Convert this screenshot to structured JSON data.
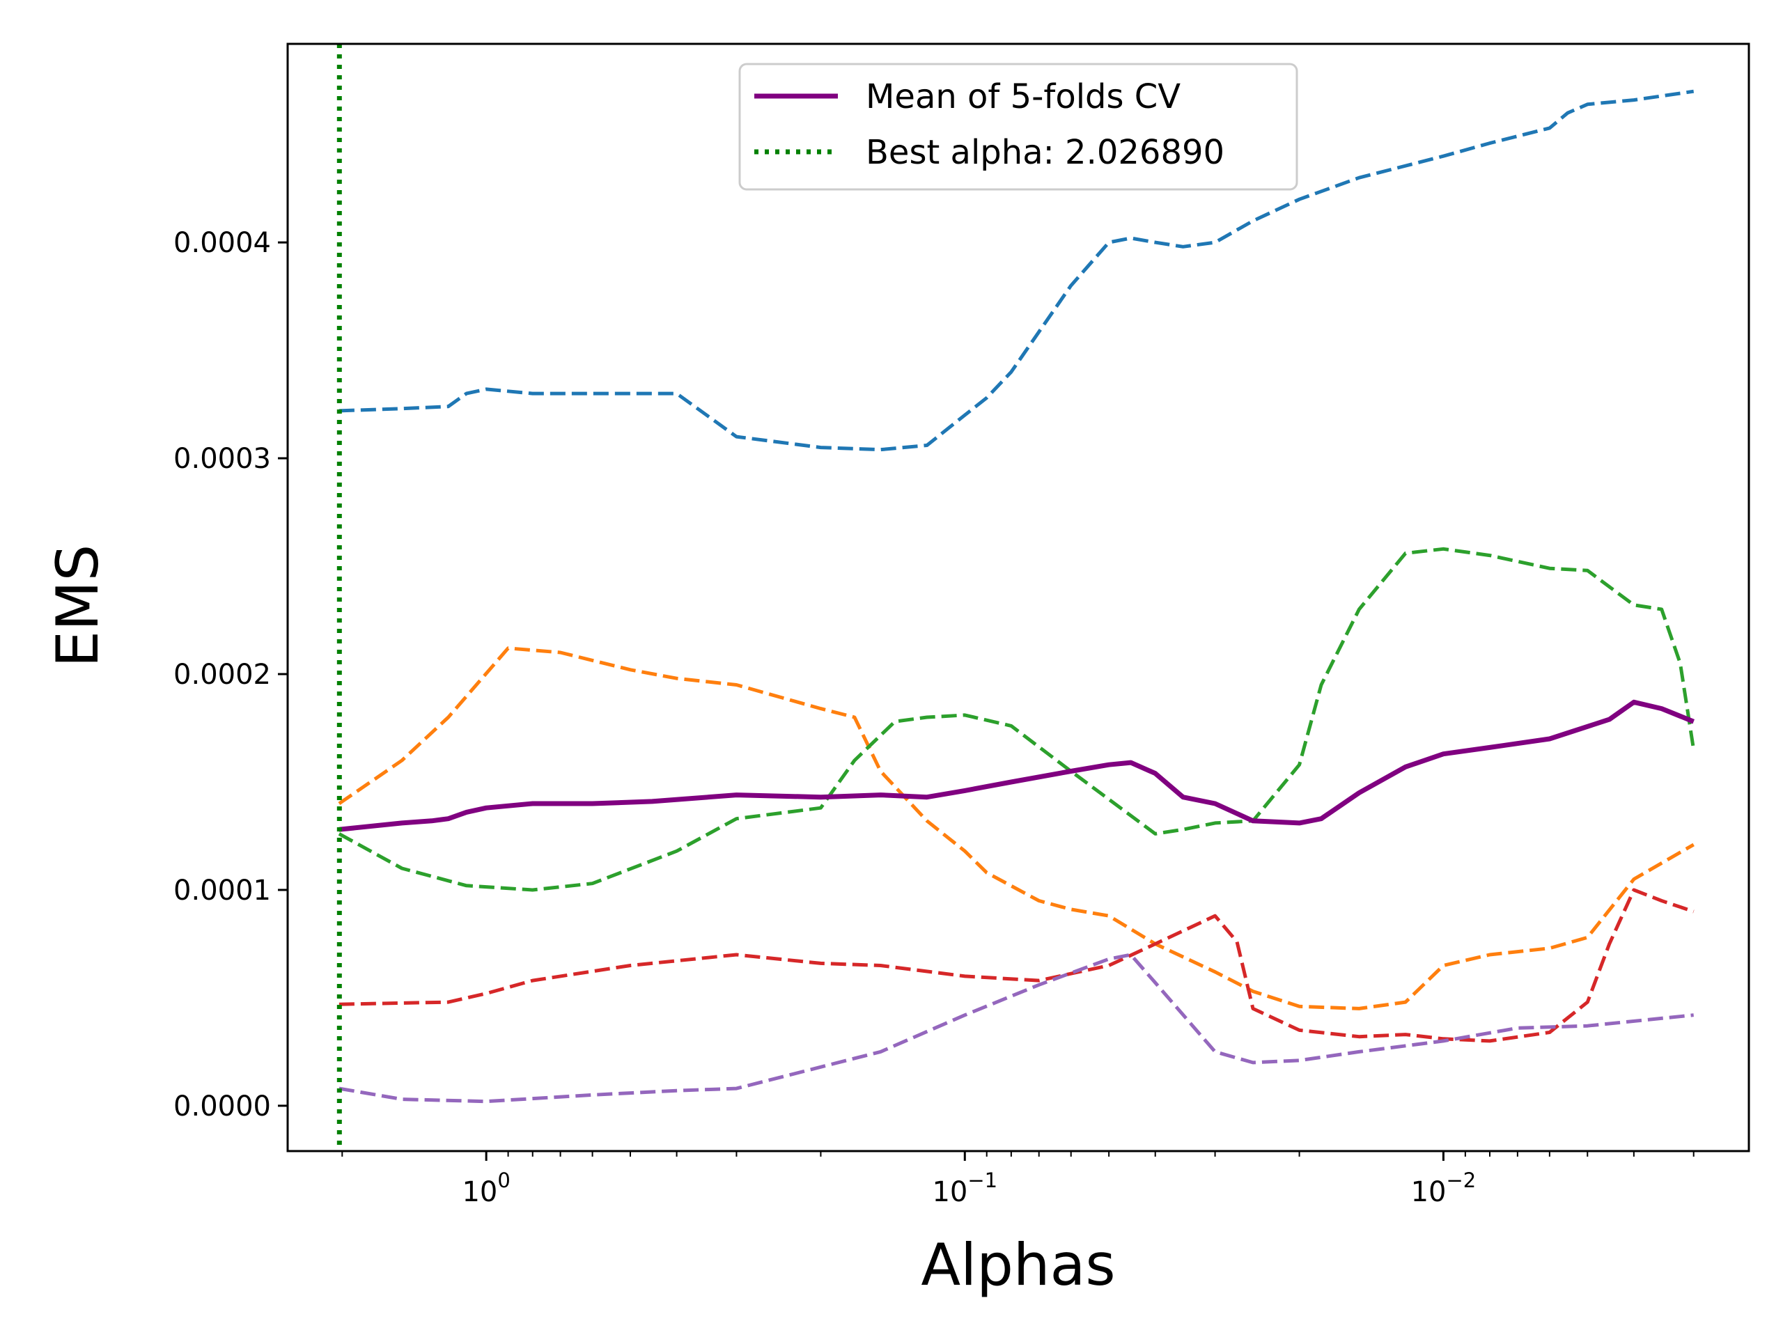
{
  "chart_data": {
    "type": "line",
    "xlabel": "Alphas",
    "ylabel": "EMS",
    "xscale": "log",
    "xaxis_inverted": true,
    "xlim": [
      2.6,
      0.0023
    ],
    "ylim": [
      -2.1e-05,
      0.000492
    ],
    "xticks": [
      {
        "value": 1,
        "label_base": "10",
        "label_exp": "0"
      },
      {
        "value": 0.1,
        "label_base": "10",
        "label_exp": "−1"
      },
      {
        "value": 0.01,
        "label_base": "10",
        "label_exp": "−2"
      }
    ],
    "yticks": [
      {
        "value": 0.0,
        "label": "0.0000"
      },
      {
        "value": 0.0001,
        "label": "0.0001"
      },
      {
        "value": 0.0002,
        "label": "0.0002"
      },
      {
        "value": 0.0003,
        "label": "0.0003"
      },
      {
        "value": 0.0004,
        "label": "0.0004"
      }
    ],
    "grid": false,
    "legend_position": "top-center",
    "best_alpha": 2.02689,
    "series": [
      {
        "id": "fold1",
        "color": "#1f77b4",
        "style": "dashed",
        "x": [
          2.03,
          1.5,
          1.2,
          1.1,
          1.0,
          0.8,
          0.6,
          0.4,
          0.3,
          0.2,
          0.15,
          0.12,
          0.1,
          0.09,
          0.08,
          0.06,
          0.05,
          0.045,
          0.04,
          0.035,
          0.03,
          0.025,
          0.02,
          0.015,
          0.01,
          0.008,
          0.006,
          0.0055,
          0.005,
          0.004,
          0.003
        ],
        "y": [
          0.000322,
          0.000323,
          0.000324,
          0.00033,
          0.000332,
          0.00033,
          0.00033,
          0.00033,
          0.00031,
          0.000305,
          0.000304,
          0.000306,
          0.00032,
          0.000328,
          0.00034,
          0.00038,
          0.0004,
          0.000402,
          0.0004,
          0.000398,
          0.0004,
          0.00041,
          0.00042,
          0.00043,
          0.00044,
          0.000446,
          0.000453,
          0.00046,
          0.000464,
          0.000466,
          0.00047
        ]
      },
      {
        "id": "fold2",
        "color": "#ff7f0e",
        "style": "dashed",
        "x": [
          2.03,
          1.5,
          1.2,
          0.9,
          0.7,
          0.5,
          0.4,
          0.3,
          0.2,
          0.17,
          0.15,
          0.12,
          0.1,
          0.09,
          0.07,
          0.06,
          0.05,
          0.04,
          0.03,
          0.025,
          0.02,
          0.015,
          0.012,
          0.01,
          0.008,
          0.006,
          0.005,
          0.004,
          0.003
        ],
        "y": [
          0.00014,
          0.00016,
          0.00018,
          0.000212,
          0.00021,
          0.000202,
          0.000198,
          0.000195,
          0.000184,
          0.00018,
          0.000155,
          0.000132,
          0.000118,
          0.000108,
          9.5e-05,
          9.1e-05,
          8.8e-05,
          7.5e-05,
          6.2e-05,
          5.3e-05,
          4.6e-05,
          4.5e-05,
          4.8e-05,
          6.5e-05,
          7e-05,
          7.3e-05,
          7.8e-05,
          0.000105,
          0.000121
        ]
      },
      {
        "id": "fold3",
        "color": "#2ca02c",
        "style": "dashed",
        "x": [
          2.03,
          1.5,
          1.1,
          0.8,
          0.6,
          0.4,
          0.3,
          0.2,
          0.17,
          0.14,
          0.12,
          0.1,
          0.08,
          0.06,
          0.05,
          0.04,
          0.035,
          0.03,
          0.025,
          0.02,
          0.018,
          0.015,
          0.012,
          0.01,
          0.008,
          0.006,
          0.005,
          0.004,
          0.0035,
          0.0032,
          0.003
        ],
        "y": [
          0.000126,
          0.00011,
          0.000102,
          0.0001,
          0.000103,
          0.000118,
          0.000133,
          0.000138,
          0.00016,
          0.000178,
          0.00018,
          0.000181,
          0.000176,
          0.000155,
          0.000142,
          0.000126,
          0.000128,
          0.000131,
          0.000132,
          0.000158,
          0.000195,
          0.00023,
          0.000256,
          0.000258,
          0.000255,
          0.000249,
          0.000248,
          0.000232,
          0.00023,
          0.000205,
          0.000165
        ]
      },
      {
        "id": "fold4",
        "color": "#d62728",
        "style": "dashed",
        "x": [
          2.03,
          1.2,
          1.0,
          0.8,
          0.5,
          0.3,
          0.2,
          0.15,
          0.1,
          0.07,
          0.05,
          0.04,
          0.03,
          0.027,
          0.025,
          0.02,
          0.015,
          0.012,
          0.01,
          0.008,
          0.006,
          0.005,
          0.0045,
          0.004,
          0.0035,
          0.003
        ],
        "y": [
          4.7e-05,
          4.8e-05,
          5.2e-05,
          5.8e-05,
          6.5e-05,
          7e-05,
          6.6e-05,
          6.5e-05,
          6e-05,
          5.8e-05,
          6.5e-05,
          7.5e-05,
          8.8e-05,
          7.6e-05,
          4.5e-05,
          3.5e-05,
          3.2e-05,
          3.3e-05,
          3.1e-05,
          3e-05,
          3.4e-05,
          4.8e-05,
          7.5e-05,
          0.0001,
          9.5e-05,
          9e-05
        ]
      },
      {
        "id": "fold5",
        "color": "#9467bd",
        "style": "dashed",
        "x": [
          2.03,
          1.5,
          1.0,
          0.6,
          0.4,
          0.3,
          0.15,
          0.1,
          0.07,
          0.05,
          0.045,
          0.04,
          0.03,
          0.025,
          0.02,
          0.015,
          0.01,
          0.007,
          0.005,
          0.003
        ],
        "y": [
          8e-06,
          3e-06,
          2e-06,
          5e-06,
          7e-06,
          8e-06,
          2.5e-05,
          4.2e-05,
          5.6e-05,
          6.8e-05,
          7e-05,
          5.7e-05,
          2.5e-05,
          2e-05,
          2.1e-05,
          2.5e-05,
          3e-05,
          3.6e-05,
          3.7e-05,
          4.2e-05
        ]
      },
      {
        "id": "mean",
        "name": "Mean of 5-folds CV",
        "color": "#800080",
        "style": "solid",
        "x": [
          2.03,
          1.5,
          1.3,
          1.2,
          1.1,
          1.0,
          0.8,
          0.6,
          0.45,
          0.3,
          0.2,
          0.15,
          0.12,
          0.1,
          0.08,
          0.06,
          0.05,
          0.045,
          0.04,
          0.035,
          0.03,
          0.025,
          0.02,
          0.018,
          0.015,
          0.012,
          0.01,
          0.008,
          0.006,
          0.0045,
          0.004,
          0.0035,
          0.003
        ],
        "y": [
          0.000128,
          0.000131,
          0.000132,
          0.000133,
          0.000136,
          0.000138,
          0.00014,
          0.00014,
          0.000141,
          0.000144,
          0.000143,
          0.000144,
          0.000143,
          0.000146,
          0.00015,
          0.000155,
          0.000158,
          0.000159,
          0.000154,
          0.000143,
          0.00014,
          0.000132,
          0.000131,
          0.000133,
          0.000145,
          0.000157,
          0.000163,
          0.000166,
          0.00017,
          0.000179,
          0.000187,
          0.000184,
          0.000178
        ]
      }
    ],
    "legend": [
      {
        "label": "Mean of 5-folds CV",
        "color": "#800080",
        "style": "solid"
      },
      {
        "label": "Best alpha: 2.026890",
        "color": "#008000",
        "style": "dotted"
      }
    ]
  }
}
